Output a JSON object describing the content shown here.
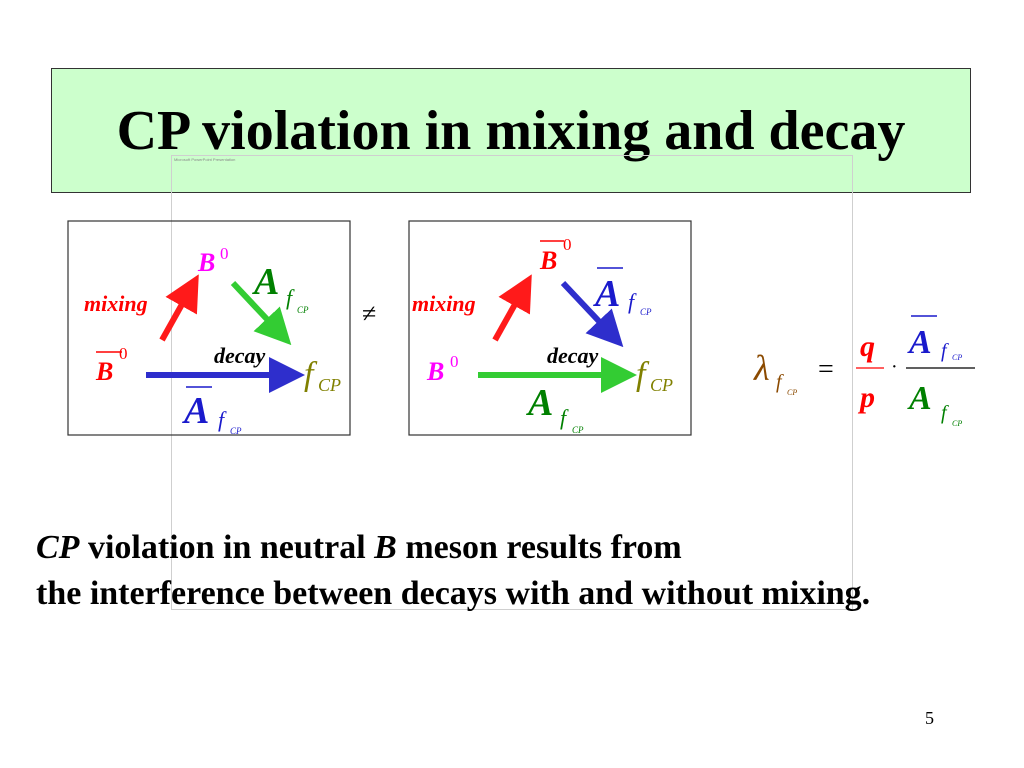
{
  "slide": {
    "title": "CP violation in mixing and decay",
    "page_number": "5"
  },
  "colors": {
    "title_bg": "#ccffcc",
    "magenta": "#ff00ff",
    "red": "#ff0000",
    "green": "#008000",
    "blue": "#1a1acc",
    "olive": "#808000",
    "brown": "#8b4a00",
    "arrow_red": "#ff1a1a",
    "arrow_green": "#33cc33",
    "arrow_blue": "#2e2ecc"
  },
  "diagram_left": {
    "top_label": "B",
    "top_sup": "0",
    "left_label": "B",
    "left_sup": "0",
    "mixing": "mixing",
    "decay": "decay",
    "amp_top": "A",
    "amp_top_sub": "f",
    "amp_top_subsub": "CP",
    "amp_bottom": "A",
    "amp_bottom_sub": "f",
    "amp_bottom_subsub": "CP",
    "final": "f",
    "final_sub": "CP"
  },
  "not_equal": "≠",
  "diagram_right": {
    "top_label": "B",
    "top_sup": "0",
    "left_label": "B",
    "left_sup": "0",
    "mixing": "mixing",
    "decay": "decay",
    "amp_top": "A",
    "amp_top_sub": "f",
    "amp_top_subsub": "CP",
    "amp_bottom": "A",
    "amp_bottom_sub": "f",
    "amp_bottom_subsub": "CP",
    "final": "f",
    "final_sub": "CP"
  },
  "formula": {
    "lambda": "λ",
    "lambda_sub": "f",
    "lambda_subsub": "CP",
    "equals": "=",
    "q": "q",
    "p": "p",
    "dot": "·",
    "num": "A",
    "num_sub": "f",
    "num_subsub": "CP",
    "den": "A",
    "den_sub": "f",
    "den_subsub": "CP"
  },
  "caption": {
    "line1_italic": "CP",
    "line1_a": " violation in neutral ",
    "line1_italic_b": "B",
    "line1_b": " meson results from",
    "line2": "the interference between decays with and without mixing."
  },
  "overlay": {
    "tag": "Microsoft PowerPoint Presentation"
  }
}
